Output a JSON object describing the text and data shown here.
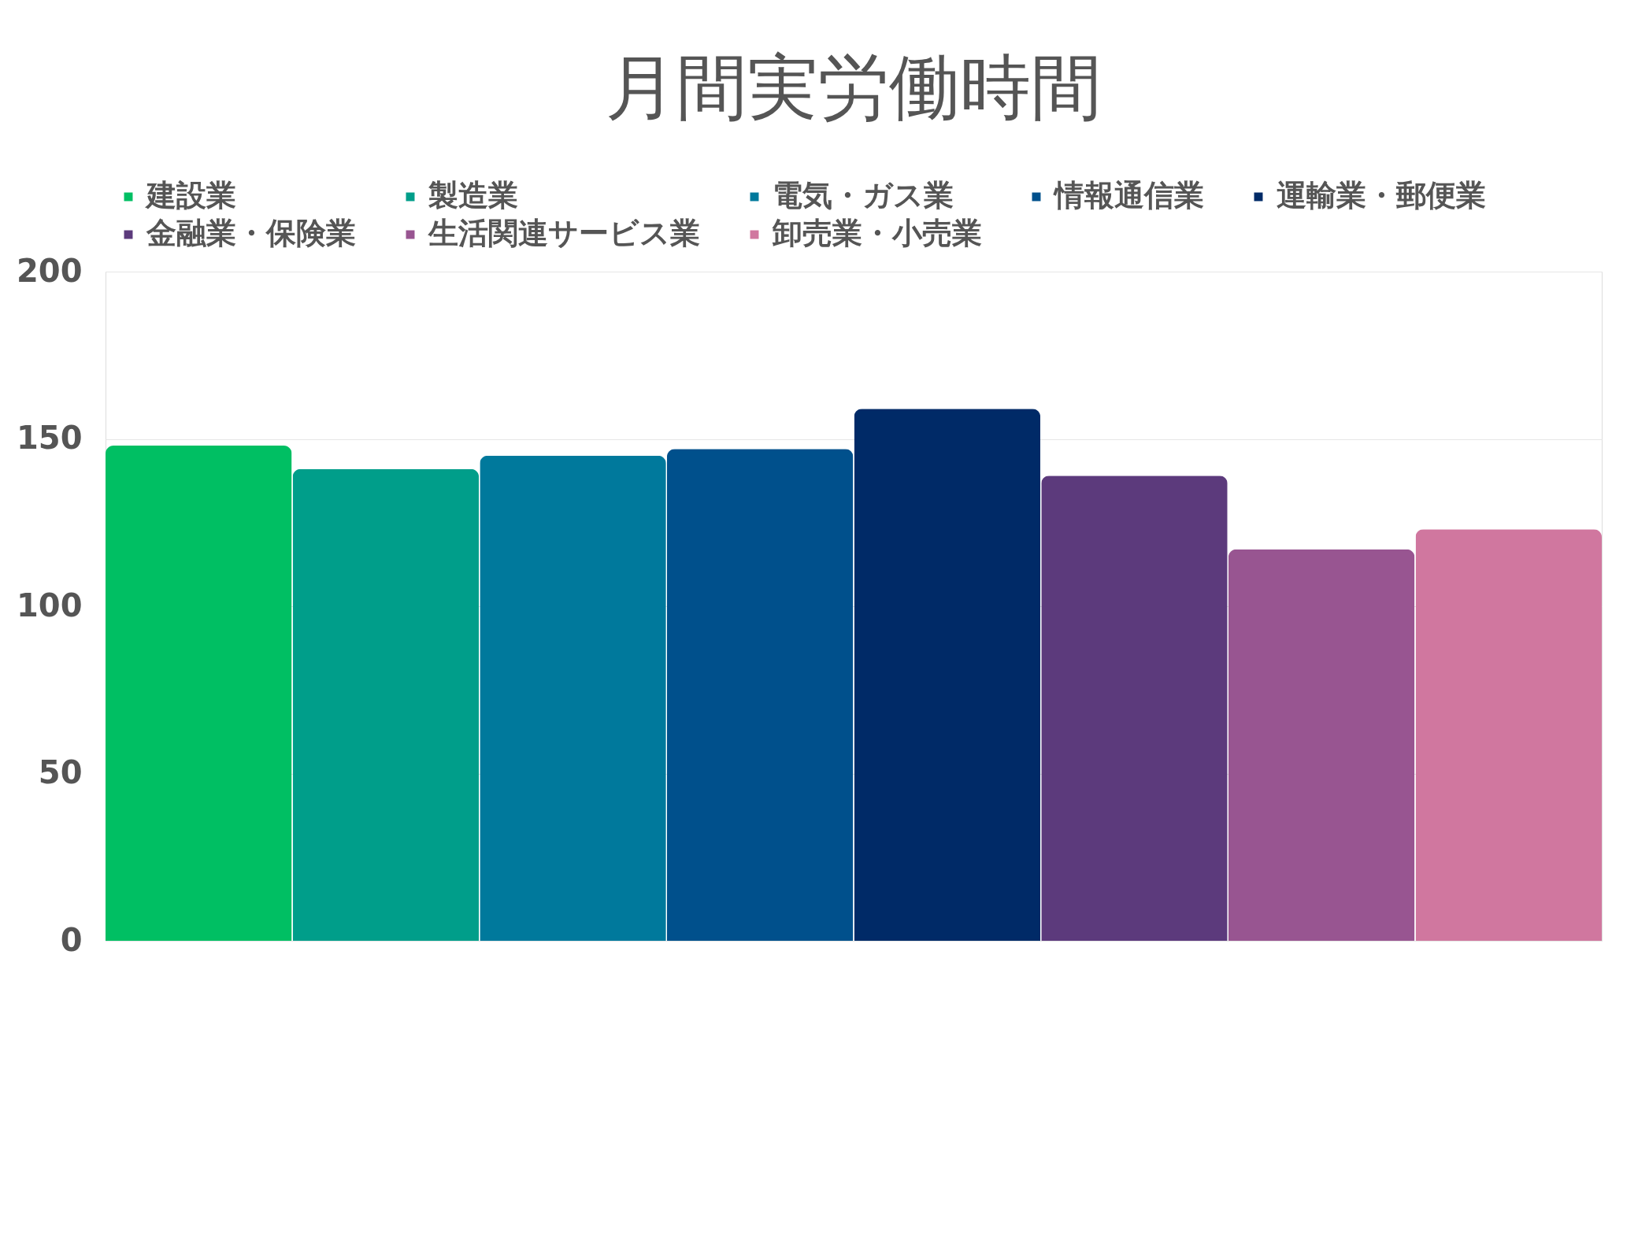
{
  "chart_data": {
    "type": "bar",
    "title": "月間実労働時間",
    "categories": [
      null
    ],
    "series": [
      {
        "name": "建設業",
        "color": "#00bf63",
        "values": [
          148
        ]
      },
      {
        "name": "製造業",
        "color": "#009e8a",
        "values": [
          141
        ]
      },
      {
        "name": "電気・ガス業",
        "color": "#00799c",
        "values": [
          145
        ]
      },
      {
        "name": "情報通信業",
        "color": "#00508c",
        "values": [
          147
        ]
      },
      {
        "name": "運輸業・郵便業",
        "color": "#002a67",
        "values": [
          159
        ]
      },
      {
        "name": "金融業・保険業",
        "color": "#5c3a7c",
        "values": [
          139
        ]
      },
      {
        "name": "生活関連サービス業",
        "color": "#985591",
        "values": [
          117
        ]
      },
      {
        "name": "卸売業・小売業",
        "color": "#d0779f",
        "values": [
          123
        ]
      }
    ],
    "ylim": [
      0,
      200
    ],
    "yticks": [
      0,
      50,
      100,
      150,
      200
    ],
    "grid": "y",
    "legend": "top",
    "tick_labels": "y"
  }
}
